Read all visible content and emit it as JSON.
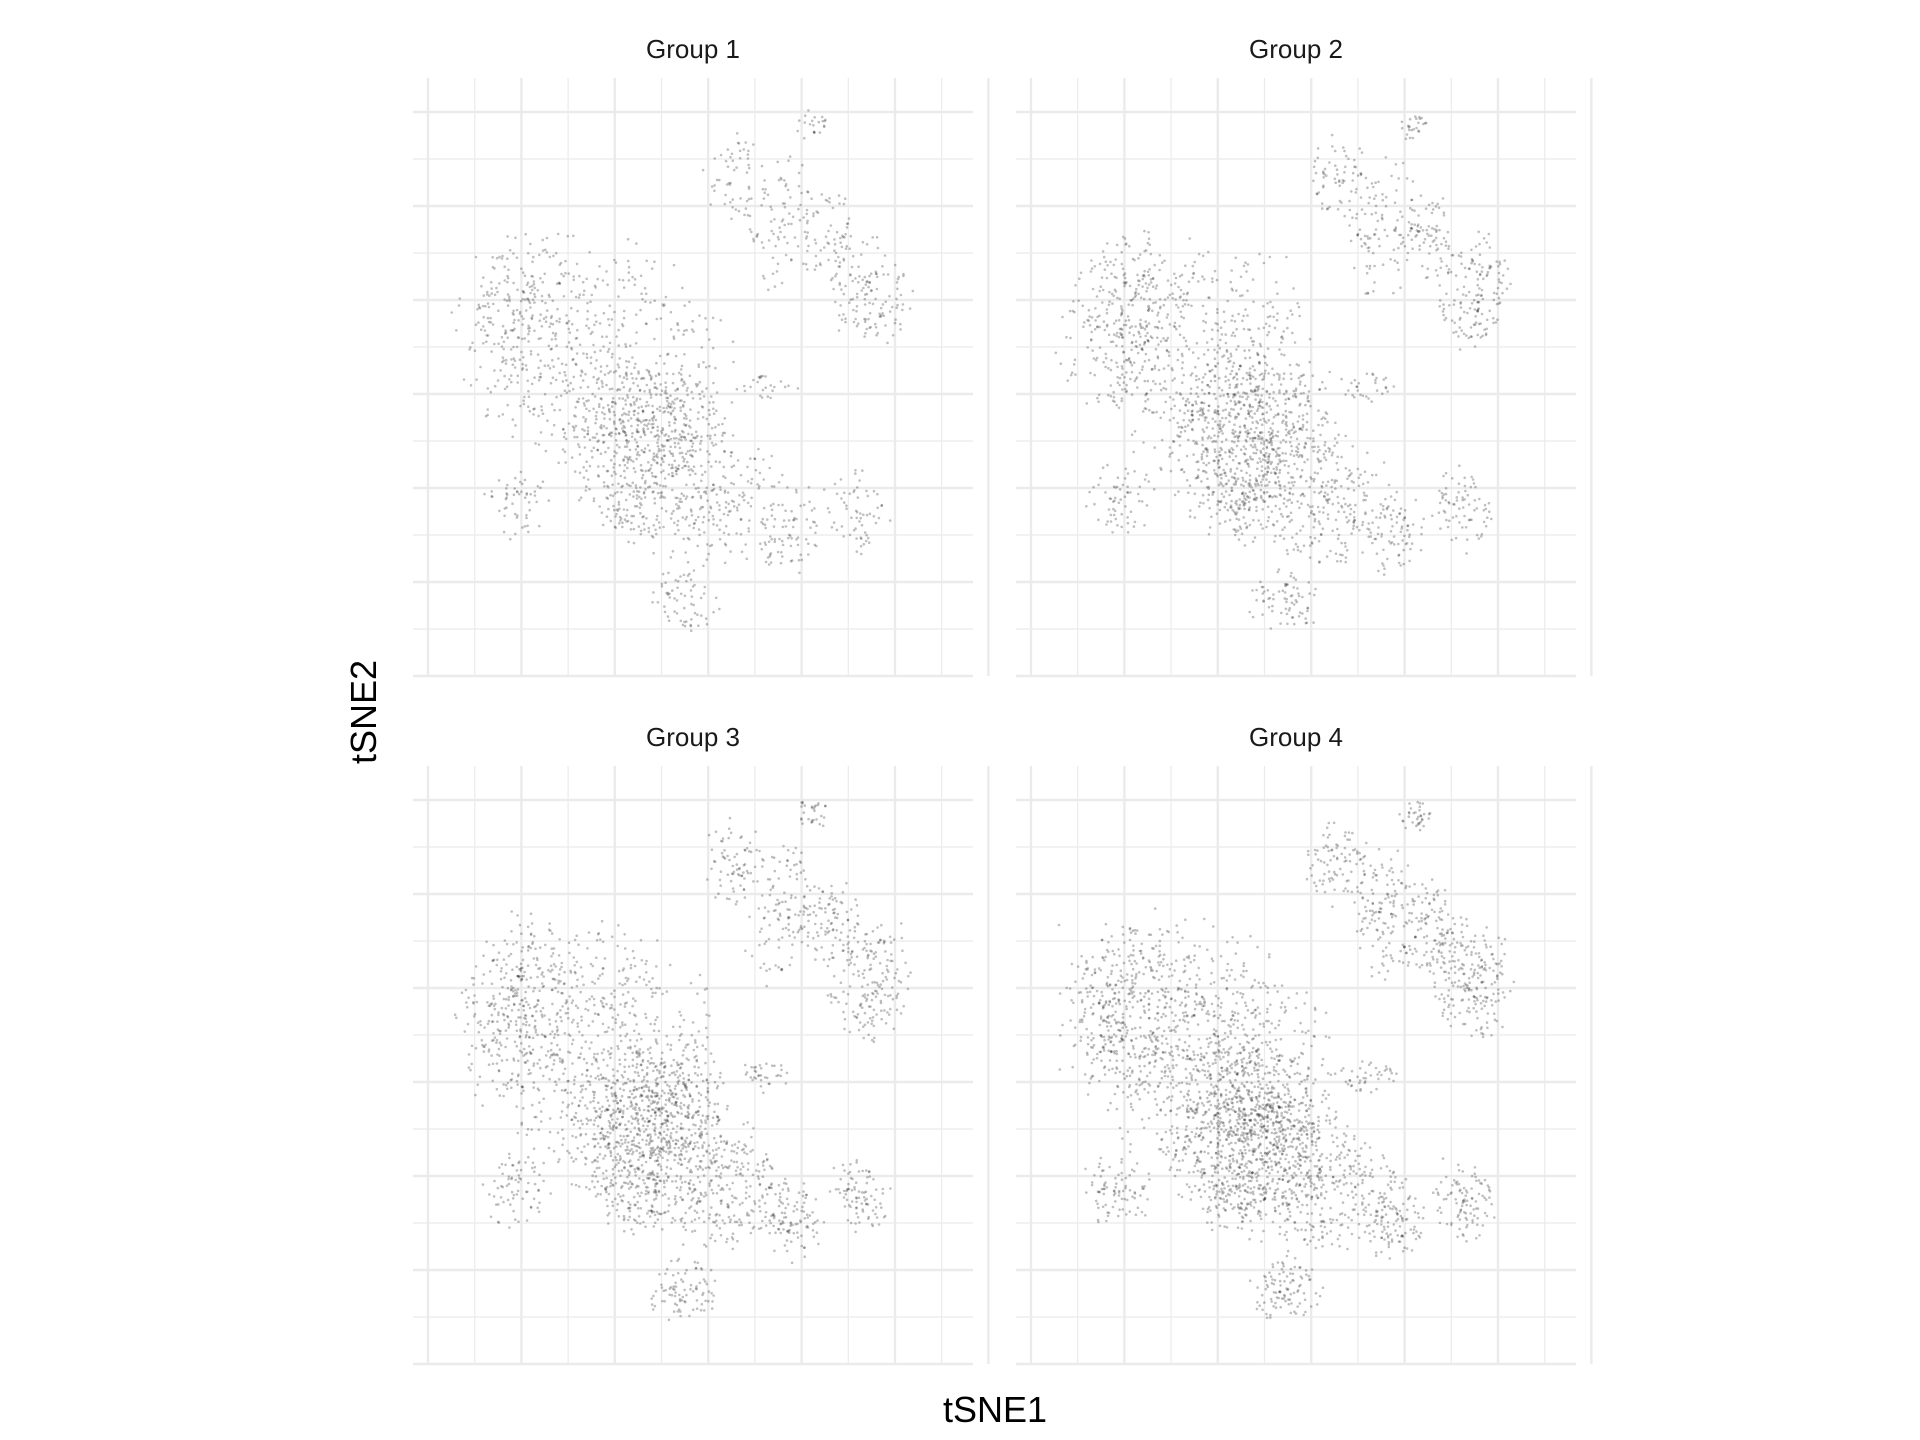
{
  "chart_data": {
    "type": "scatter",
    "xlabel": "tSNE1",
    "ylabel": "tSNE2",
    "point_color": "#000000",
    "point_alpha": 0.25,
    "grid": true,
    "grid_color": "#ebebeb",
    "legend": "none",
    "facets": [
      {
        "title": "Group 1",
        "density": 0.8
      },
      {
        "title": "Group 2",
        "density": 0.95
      },
      {
        "title": "Group 3",
        "density": 1.1
      },
      {
        "title": "Group 4",
        "density": 1.3
      }
    ],
    "clusters": [
      {
        "cx": 0.31,
        "cy": 0.46,
        "rx": 0.27,
        "ry": 0.21,
        "rot": 0.35,
        "rel": 0.22
      },
      {
        "cx": 0.42,
        "cy": 0.57,
        "rx": 0.16,
        "ry": 0.11,
        "rot": 0.3,
        "rel": 0.14
      },
      {
        "cx": 0.47,
        "cy": 0.69,
        "rx": 0.24,
        "ry": 0.13,
        "rot": 0.3,
        "rel": 0.22
      },
      {
        "cx": 0.17,
        "cy": 0.4,
        "rx": 0.11,
        "ry": 0.17,
        "rot": 0.0,
        "rel": 0.08
      },
      {
        "cx": 0.48,
        "cy": 0.9,
        "rx": 0.07,
        "ry": 0.06,
        "rot": 0.0,
        "rel": 0.03
      },
      {
        "cx": 0.69,
        "cy": 0.78,
        "rx": 0.06,
        "ry": 0.08,
        "rot": 0.2,
        "rel": 0.03
      },
      {
        "cx": 0.82,
        "cy": 0.74,
        "rx": 0.06,
        "ry": 0.08,
        "rot": -0.3,
        "rel": 0.03
      },
      {
        "cx": 0.84,
        "cy": 0.35,
        "rx": 0.08,
        "ry": 0.11,
        "rot": 0.0,
        "rel": 0.06
      },
      {
        "cx": 0.67,
        "cy": 0.23,
        "rx": 0.07,
        "ry": 0.13,
        "rot": 0.1,
        "rel": 0.04
      },
      {
        "cx": 0.76,
        "cy": 0.25,
        "rx": 0.06,
        "ry": 0.09,
        "rot": 0.0,
        "rel": 0.03
      },
      {
        "cx": 0.16,
        "cy": 0.72,
        "rx": 0.07,
        "ry": 0.07,
        "rot": 0.0,
        "rel": 0.025
      },
      {
        "cx": 0.38,
        "cy": 0.73,
        "rx": 0.07,
        "ry": 0.07,
        "rot": 0.0,
        "rel": 0.025
      },
      {
        "cx": 0.58,
        "cy": 0.14,
        "rx": 0.06,
        "ry": 0.08,
        "rot": 0.0,
        "rel": 0.025
      },
      {
        "cx": 0.73,
        "cy": 0.05,
        "rx": 0.03,
        "ry": 0.03,
        "rot": 0.0,
        "rel": 0.01
      },
      {
        "cx": 0.64,
        "cy": 0.52,
        "rx": 0.06,
        "ry": 0.03,
        "rot": 0.0,
        "rel": 0.012
      }
    ]
  }
}
